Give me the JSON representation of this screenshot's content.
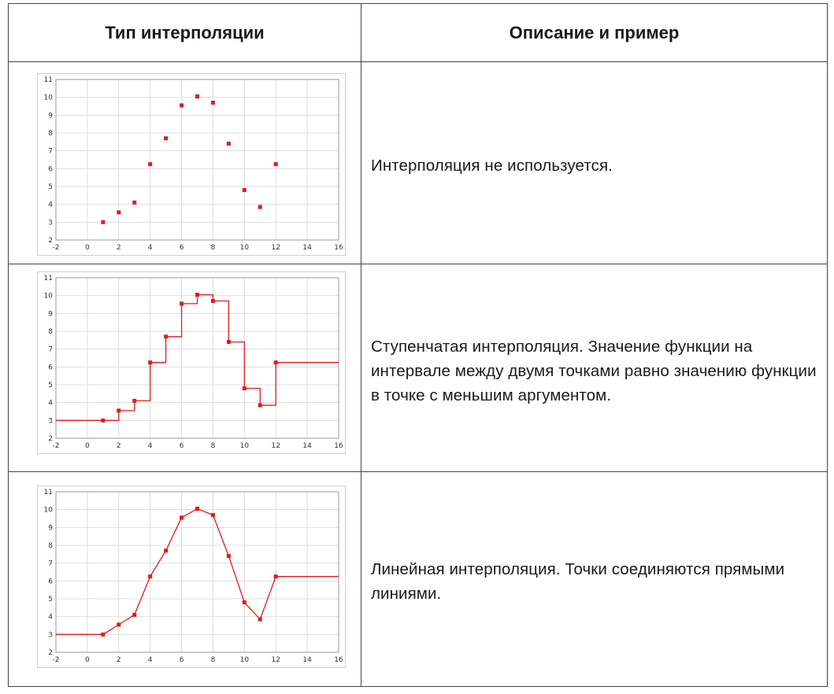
{
  "table": {
    "header_col1": "Тип интерполяции",
    "header_col2": "Описание и пример",
    "rows": [
      {
        "description": "Интерполяция  не используется."
      },
      {
        "description": "Ступенчатая  интерполяция.  Значение  функции  на интервале  между  двумя  точками  равно  значению функции  в  точке  с  меньшим  аргументом."
      },
      {
        "description": "Линейная  интерполяция.  Точки  соединяются прямыми  линиями."
      }
    ]
  },
  "colors": {
    "series": "#e31a1c",
    "grid": "#dddddd",
    "frame": "#999999"
  },
  "chart_data": [
    {
      "type": "scatter",
      "x": [
        1,
        2,
        3,
        4,
        5,
        6,
        7,
        8,
        9,
        10,
        11,
        12
      ],
      "y": [
        3.0,
        3.55,
        4.1,
        6.25,
        7.7,
        9.55,
        10.05,
        9.7,
        7.4,
        4.8,
        3.85,
        6.25
      ],
      "xlim": [
        -2,
        16
      ],
      "ylim": [
        2,
        11
      ],
      "xticks": [
        -2,
        0,
        2,
        4,
        6,
        8,
        10,
        12,
        14,
        16
      ],
      "yticks": [
        2,
        3,
        4,
        5,
        6,
        7,
        8,
        9,
        10,
        11
      ],
      "grid": true
    },
    {
      "type": "line",
      "interpolation": "step",
      "x": [
        1,
        2,
        3,
        4,
        5,
        6,
        7,
        8,
        9,
        10,
        11,
        12
      ],
      "y": [
        3.0,
        3.55,
        4.1,
        6.25,
        7.7,
        9.55,
        10.05,
        9.7,
        7.4,
        4.8,
        3.85,
        6.25
      ],
      "xlim": [
        -2,
        16
      ],
      "ylim": [
        2,
        11
      ],
      "xticks": [
        -2,
        0,
        2,
        4,
        6,
        8,
        10,
        12,
        14,
        16
      ],
      "yticks": [
        2,
        3,
        4,
        5,
        6,
        7,
        8,
        9,
        10,
        11
      ],
      "grid": true
    },
    {
      "type": "line",
      "interpolation": "linear",
      "x": [
        1,
        2,
        3,
        4,
        5,
        6,
        7,
        8,
        9,
        10,
        11,
        12
      ],
      "y": [
        3.0,
        3.55,
        4.1,
        6.25,
        7.7,
        9.55,
        10.05,
        9.7,
        7.4,
        4.8,
        3.85,
        6.25
      ],
      "xlim": [
        -2,
        16
      ],
      "ylim": [
        2,
        11
      ],
      "xticks": [
        -2,
        0,
        2,
        4,
        6,
        8,
        10,
        12,
        14,
        16
      ],
      "yticks": [
        2,
        3,
        4,
        5,
        6,
        7,
        8,
        9,
        10,
        11
      ],
      "grid": true
    }
  ]
}
